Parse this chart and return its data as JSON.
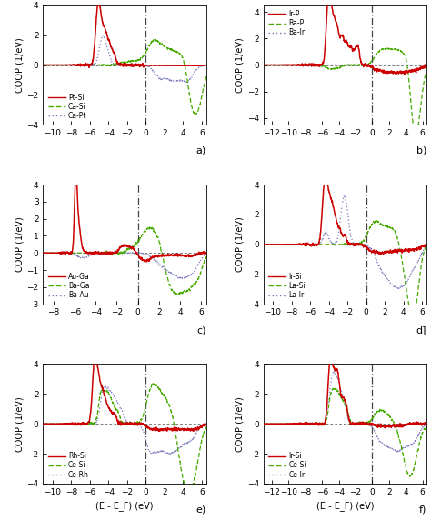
{
  "panels": [
    {
      "label": "a)",
      "xlim": [
        -11,
        6.5
      ],
      "xticks": [
        -10,
        -8,
        -6,
        -4,
        -2,
        0,
        2,
        4,
        6
      ],
      "ylim": [
        -4,
        4
      ],
      "legend": [
        "Pt-Si",
        "Ca-Si",
        "Ca-Pt"
      ],
      "colors": [
        "#cc0000",
        "#44aa00",
        "#7777bb"
      ],
      "linestyles": [
        "solid",
        "dashed",
        "dotted"
      ],
      "legend_loc": "lower left"
    },
    {
      "label": "b)",
      "xlim": [
        -13,
        6.5
      ],
      "xticks": [
        -12,
        -10,
        -8,
        -6,
        -4,
        -2,
        0,
        2,
        4,
        6
      ],
      "ylim": [
        -4.5,
        4.5
      ],
      "legend": [
        "Ir-P",
        "Ba-P",
        "Ba-Ir"
      ],
      "colors": [
        "#cc0000",
        "#44aa00",
        "#7777bb"
      ],
      "linestyles": [
        "solid",
        "dashed",
        "dotted"
      ],
      "legend_loc": "upper left"
    },
    {
      "label": "c)",
      "xlim": [
        -9,
        6.5
      ],
      "xticks": [
        -8,
        -6,
        -4,
        -2,
        0,
        2,
        4,
        6
      ],
      "ylim": [
        -3,
        4
      ],
      "legend": [
        "Au-Ga",
        "Ba-Ga",
        "Ba-Au"
      ],
      "colors": [
        "#cc0000",
        "#44aa00",
        "#7777bb"
      ],
      "linestyles": [
        "solid",
        "dashed",
        "dotted"
      ],
      "legend_loc": "lower left"
    },
    {
      "label": "d]",
      "xlim": [
        -11,
        6.5
      ],
      "xticks": [
        -10,
        -8,
        -6,
        -4,
        -2,
        0,
        2,
        4,
        6
      ],
      "ylim": [
        -4,
        4
      ],
      "legend": [
        "Ir-Si",
        "La-Si",
        "La-Ir"
      ],
      "colors": [
        "#cc0000",
        "#44aa00",
        "#7777bb"
      ],
      "linestyles": [
        "solid",
        "dashed",
        "dotted"
      ],
      "legend_loc": "lower left"
    },
    {
      "label": "e)",
      "xlim": [
        -11,
        6.5
      ],
      "xticks": [
        -10,
        -8,
        -6,
        -4,
        -2,
        0,
        2,
        4,
        6
      ],
      "ylim": [
        -4,
        4
      ],
      "legend": [
        "Rh-Si",
        "Ce-Si",
        "Ce-Rh"
      ],
      "colors": [
        "#cc0000",
        "#44aa00",
        "#7777bb"
      ],
      "linestyles": [
        "solid",
        "dashed",
        "dotted"
      ],
      "legend_loc": "lower left"
    },
    {
      "label": "f)",
      "xlim": [
        -13,
        6.5
      ],
      "xticks": [
        -12,
        -10,
        -8,
        -6,
        -4,
        -2,
        0,
        2,
        4,
        6
      ],
      "ylim": [
        -4,
        4
      ],
      "legend": [
        "Ir-Si",
        "Ce-Si",
        "Ce-Ir"
      ],
      "colors": [
        "#cc0000",
        "#44aa00",
        "#7777bb"
      ],
      "linestyles": [
        "solid",
        "dashed",
        "dotted"
      ],
      "legend_loc": "lower left"
    }
  ],
  "ylabel": "COOP (1/eV)",
  "xlabel": "(E - E_F) (eV)",
  "bg_color": "#ffffff"
}
